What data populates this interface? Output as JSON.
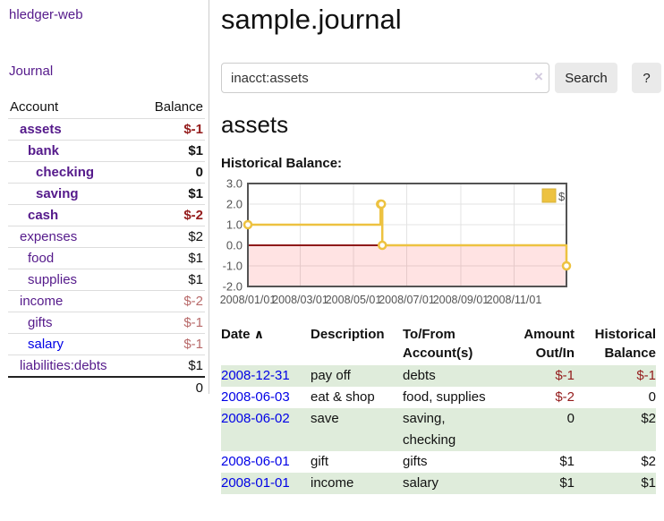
{
  "sidebar": {
    "brand": "hledger-web",
    "journal_link": "Journal",
    "accounts": {
      "headers": {
        "account": "Account",
        "balance": "Balance"
      },
      "rows": [
        {
          "name": "assets",
          "balance": "$-1"
        },
        {
          "name": "bank",
          "balance": "$1"
        },
        {
          "name": "checking",
          "balance": "0"
        },
        {
          "name": "saving",
          "balance": "$1"
        },
        {
          "name": "cash",
          "balance": "$-2"
        },
        {
          "name": "expenses",
          "balance": "$2"
        },
        {
          "name": "food",
          "balance": "$1"
        },
        {
          "name": "supplies",
          "balance": "$1"
        },
        {
          "name": "income",
          "balance": "$-2"
        },
        {
          "name": "gifts",
          "balance": "$-1"
        },
        {
          "name": "salary",
          "balance": "$-1"
        },
        {
          "name": "liabilities:debts",
          "balance": "$1"
        }
      ],
      "total": "0"
    }
  },
  "header": {
    "title": "sample.journal"
  },
  "search": {
    "value": "inacct:assets",
    "clear_icon": "×",
    "button_label": "Search",
    "help_label": "?"
  },
  "account_page": {
    "heading": "assets",
    "chart_title": "Historical Balance:"
  },
  "chart_data": {
    "type": "line",
    "step": true,
    "title": "Historical Balance",
    "series": [
      {
        "name": "$",
        "color": "#edc240",
        "points": [
          [
            "2008-01-01",
            1
          ],
          [
            "2008-06-01",
            2
          ],
          [
            "2008-06-02",
            2
          ],
          [
            "2008-06-03",
            0
          ],
          [
            "2008-12-31",
            -1
          ]
        ]
      }
    ],
    "x_ticks": [
      "2008/01/01",
      "2008/03/01",
      "2008/05/01",
      "2008/07/01",
      "2008/09/01",
      "2008/11/01"
    ],
    "y_ticks": [
      "3.0",
      "2.0",
      "1.0",
      "0.0",
      "-1.0",
      "-2.0"
    ],
    "xlim": [
      "2008-01-01",
      "2008-12-31"
    ],
    "ylim": [
      -2,
      3
    ],
    "legend": "$",
    "legend_position": "top-right",
    "grid": true,
    "negative_region_color": "#ff0000",
    "zero_line_color": "#8f1a1a",
    "border_color": "#545454",
    "tick_label_color": "#545454"
  },
  "register": {
    "headers": {
      "date": "Date",
      "sort_icon": "∧",
      "description": "Description",
      "accounts": "To/From\nAccount(s)",
      "amount": "Amount\nOut/In",
      "balance": "Historical\nBalance"
    },
    "rows": [
      {
        "date": "2008-12-31",
        "description": "pay off",
        "accounts": "debts",
        "amount": "$-1",
        "balance": "$-1"
      },
      {
        "date": "2008-06-03",
        "description": "eat & shop",
        "accounts": "food, supplies",
        "amount": "$-2",
        "balance": "0"
      },
      {
        "date": "2008-06-02",
        "description": "save",
        "accounts": "saving,\nchecking",
        "amount": "0",
        "balance": "$2"
      },
      {
        "date": "2008-06-01",
        "description": "gift",
        "accounts": "gifts",
        "amount": "$1",
        "balance": "$2"
      },
      {
        "date": "2008-01-01",
        "description": "income",
        "accounts": "salary",
        "amount": "$1",
        "balance": "$1"
      }
    ]
  }
}
